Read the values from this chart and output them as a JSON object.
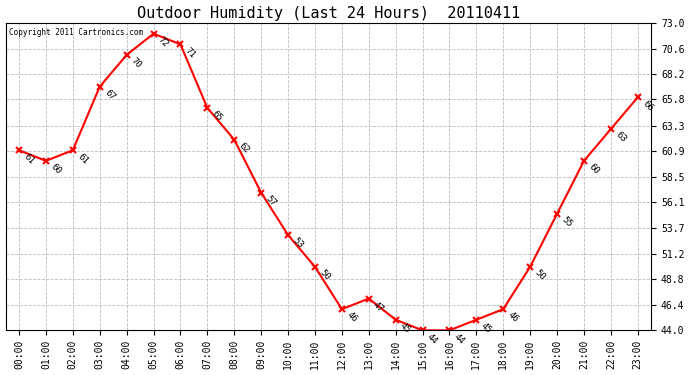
{
  "title": "Outdoor Humidity (Last 24 Hours)  20110411",
  "copyright": "Copyright 2011 Cartronics.com",
  "hours": [
    "00:00",
    "01:00",
    "02:00",
    "03:00",
    "04:00",
    "05:00",
    "06:00",
    "07:00",
    "08:00",
    "09:00",
    "10:00",
    "11:00",
    "12:00",
    "13:00",
    "14:00",
    "15:00",
    "16:00",
    "17:00",
    "18:00",
    "19:00",
    "20:00",
    "21:00",
    "22:00",
    "23:00"
  ],
  "values": [
    61,
    60,
    61,
    67,
    70,
    72,
    71,
    65,
    62,
    57,
    53,
    50,
    46,
    47,
    45,
    44,
    44,
    45,
    46,
    50,
    55,
    60,
    63,
    66
  ],
  "ylim": [
    44.0,
    73.0
  ],
  "yticks": [
    44.0,
    46.4,
    48.8,
    51.2,
    53.7,
    56.1,
    58.5,
    60.9,
    63.3,
    65.8,
    68.2,
    70.6,
    73.0
  ],
  "line_color": "red",
  "marker": "x",
  "marker_color": "red",
  "bg_color": "white",
  "grid_color": "#bbbbbb",
  "title_fontsize": 11,
  "label_fontsize": 7,
  "annot_fontsize": 6.5
}
